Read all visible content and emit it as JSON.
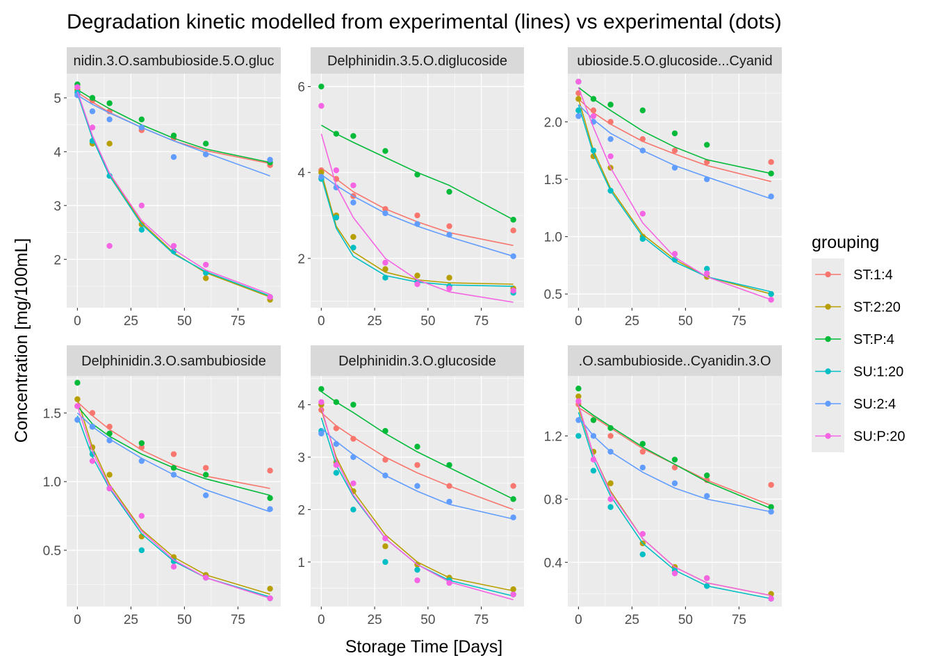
{
  "title": "Degradation kinetic modelled from experimental (lines) vs experimental (dots)",
  "xlabel": "Storage Time [Days]",
  "ylabel": "Concentration [mg/100mL]",
  "legend": {
    "title": "grouping",
    "placement": "right",
    "items": [
      {
        "label": "ST:1:4",
        "color": "#F8766D"
      },
      {
        "label": "ST:2:20",
        "color": "#B79F00"
      },
      {
        "label": "ST:P:4",
        "color": "#00BA38"
      },
      {
        "label": "SU:1:20",
        "color": "#00BFC4"
      },
      {
        "label": "SU:2:4",
        "color": "#619CFF"
      },
      {
        "label": "SU:P:20",
        "color": "#F564E3"
      }
    ]
  },
  "chart_data": [
    {
      "type": "line",
      "facet_title": "nidin.3.O.sambubioside.5.O.gluc",
      "x_ticks": [
        0,
        25,
        50,
        75
      ],
      "y_ticks": [
        "2",
        "3",
        "4",
        "5"
      ],
      "xlim": [
        -5,
        95
      ],
      "ylim": [
        1.1,
        5.45
      ],
      "x": [
        0,
        7,
        15,
        30,
        45,
        60,
        90
      ],
      "series": [
        {
          "name": "ST:1:4",
          "points": [
            5.2,
            4.95,
            4.75,
            4.4,
            4.25,
            3.95,
            3.75
          ],
          "fit": [
            5.1,
            4.92,
            4.73,
            4.45,
            4.2,
            4.02,
            3.78
          ]
        },
        {
          "name": "ST:2:20",
          "points": [
            5.15,
            4.15,
            4.15,
            2.65,
            2.15,
            1.65,
            1.25
          ],
          "fit": [
            5.1,
            4.28,
            3.58,
            2.68,
            2.12,
            1.75,
            1.3
          ]
        },
        {
          "name": "ST:P:4",
          "points": [
            5.25,
            5.0,
            4.9,
            4.6,
            4.3,
            4.15,
            3.8
          ],
          "fit": [
            5.15,
            4.98,
            4.8,
            4.5,
            4.25,
            4.05,
            3.8
          ]
        },
        {
          "name": "SU:1:20",
          "points": [
            5.1,
            4.2,
            3.55,
            2.55,
            2.15,
            1.75,
            1.3
          ],
          "fit": [
            5.08,
            4.25,
            3.55,
            2.65,
            2.1,
            1.77,
            1.32
          ]
        },
        {
          "name": "SU:2:4",
          "points": [
            5.05,
            4.75,
            4.6,
            4.45,
            3.9,
            3.95,
            3.85
          ],
          "fit": [
            5.05,
            4.88,
            4.72,
            4.45,
            4.2,
            3.98,
            3.55
          ]
        },
        {
          "name": "SU:P:20",
          "points": [
            5.2,
            4.45,
            2.25,
            3.0,
            2.25,
            1.9,
            1.3
          ],
          "fit": [
            5.12,
            4.3,
            3.6,
            2.72,
            2.18,
            1.8,
            1.35
          ]
        }
      ]
    },
    {
      "type": "line",
      "facet_title": "Delphinidin.3.5.O.diglucoside",
      "x_ticks": [
        0,
        25,
        50,
        75
      ],
      "y_ticks": [
        "2",
        "4",
        "6"
      ],
      "xlim": [
        -5,
        95
      ],
      "ylim": [
        0.85,
        6.3
      ],
      "x": [
        0,
        7,
        15,
        30,
        45,
        60,
        90
      ],
      "series": [
        {
          "name": "ST:1:4",
          "points": [
            4.05,
            3.85,
            3.45,
            3.15,
            3.0,
            2.75,
            2.65
          ],
          "fit": [
            4.1,
            3.85,
            3.55,
            3.15,
            2.85,
            2.6,
            2.3
          ]
        },
        {
          "name": "ST:2:20",
          "points": [
            4.0,
            3.0,
            2.5,
            1.75,
            1.6,
            1.55,
            1.3
          ],
          "fit": [
            4.0,
            2.75,
            2.15,
            1.68,
            1.5,
            1.43,
            1.4
          ]
        },
        {
          "name": "ST:P:4",
          "points": [
            6.0,
            4.9,
            4.85,
            4.5,
            3.95,
            3.55,
            2.9
          ],
          "fit": [
            5.1,
            4.9,
            4.7,
            4.35,
            4.0,
            3.7,
            2.9
          ]
        },
        {
          "name": "SU:1:20",
          "points": [
            3.85,
            2.95,
            2.25,
            1.55,
            1.45,
            1.35,
            1.2
          ],
          "fit": [
            3.9,
            2.7,
            2.05,
            1.6,
            1.45,
            1.38,
            1.35
          ]
        },
        {
          "name": "SU:2:4",
          "points": [
            3.9,
            3.65,
            3.3,
            3.05,
            2.8,
            2.55,
            2.05
          ],
          "fit": [
            3.95,
            3.7,
            3.45,
            3.05,
            2.75,
            2.5,
            2.05
          ]
        },
        {
          "name": "SU:P:20",
          "points": [
            5.55,
            4.05,
            3.7,
            1.9,
            1.4,
            1.3,
            1.25
          ],
          "fit": [
            4.9,
            3.7,
            2.95,
            2.0,
            1.5,
            1.22,
            0.98
          ]
        }
      ]
    },
    {
      "type": "line",
      "facet_title": "ubioside.5.O.glucoside...Cyanid",
      "x_ticks": [
        0,
        25,
        50,
        75
      ],
      "y_ticks": [
        "0.5",
        "1.0",
        "1.5",
        "2.0"
      ],
      "xlim": [
        -5,
        95
      ],
      "ylim": [
        0.38,
        2.42
      ],
      "x": [
        0,
        7,
        15,
        30,
        45,
        60,
        90
      ],
      "series": [
        {
          "name": "ST:1:4",
          "points": [
            2.25,
            2.1,
            2.0,
            1.85,
            1.75,
            1.65,
            1.65
          ],
          "fit": [
            2.2,
            2.08,
            1.98,
            1.83,
            1.72,
            1.62,
            1.48
          ]
        },
        {
          "name": "ST:2:20",
          "points": [
            2.2,
            1.7,
            1.6,
            1.0,
            0.8,
            0.65,
            0.5
          ],
          "fit": [
            2.2,
            1.75,
            1.42,
            1.02,
            0.8,
            0.65,
            0.5
          ]
        },
        {
          "name": "ST:P:4",
          "points": [
            2.35,
            2.2,
            2.15,
            2.1,
            1.9,
            1.8,
            1.55
          ],
          "fit": [
            2.3,
            2.2,
            2.1,
            1.92,
            1.78,
            1.67,
            1.55
          ]
        },
        {
          "name": "SU:1:20",
          "points": [
            2.1,
            1.75,
            1.4,
            0.98,
            0.8,
            0.72,
            0.5
          ],
          "fit": [
            2.15,
            1.72,
            1.4,
            1.0,
            0.78,
            0.65,
            0.52
          ]
        },
        {
          "name": "SU:2:4",
          "points": [
            2.05,
            2.0,
            1.85,
            1.75,
            1.6,
            1.5,
            1.35
          ],
          "fit": [
            2.15,
            2.02,
            1.9,
            1.75,
            1.62,
            1.52,
            1.33
          ]
        },
        {
          "name": "SU:P:20",
          "points": [
            2.35,
            2.05,
            1.7,
            1.2,
            0.85,
            0.68,
            0.45
          ],
          "fit": [
            2.3,
            1.95,
            1.6,
            1.12,
            0.82,
            0.65,
            0.45
          ]
        }
      ]
    },
    {
      "type": "line",
      "facet_title": "Delphinidin.3.O.sambubioside",
      "x_ticks": [
        0,
        25,
        50,
        75
      ],
      "y_ticks": [
        "0.5",
        "1.0",
        "1.5"
      ],
      "xlim": [
        -5,
        95
      ],
      "ylim": [
        0.09,
        1.77
      ],
      "x": [
        0,
        7,
        15,
        30,
        45,
        60,
        90
      ],
      "series": [
        {
          "name": "ST:1:4",
          "points": [
            1.55,
            1.5,
            1.4,
            1.25,
            1.2,
            1.1,
            1.08
          ],
          "fit": [
            1.58,
            1.48,
            1.38,
            1.23,
            1.12,
            1.04,
            0.95
          ]
        },
        {
          "name": "ST:2:20",
          "points": [
            1.6,
            1.25,
            1.05,
            0.6,
            0.45,
            0.32,
            0.22
          ],
          "fit": [
            1.6,
            1.25,
            0.98,
            0.65,
            0.45,
            0.32,
            0.18
          ]
        },
        {
          "name": "ST:P:4",
          "points": [
            1.72,
            1.4,
            1.35,
            1.28,
            1.1,
            1.05,
            0.88
          ],
          "fit": [
            1.55,
            1.42,
            1.33,
            1.2,
            1.1,
            1.02,
            0.9
          ]
        },
        {
          "name": "SU:1:20",
          "points": [
            1.45,
            1.2,
            0.95,
            0.5,
            0.42,
            0.3,
            0.15
          ],
          "fit": [
            1.48,
            1.18,
            0.95,
            0.62,
            0.42,
            0.3,
            0.16
          ]
        },
        {
          "name": "SU:2:4",
          "points": [
            1.45,
            1.4,
            1.3,
            1.15,
            1.05,
            0.9,
            0.8
          ],
          "fit": [
            1.5,
            1.4,
            1.31,
            1.17,
            1.05,
            0.94,
            0.78
          ]
        },
        {
          "name": "SU:P:20",
          "points": [
            1.55,
            1.15,
            0.95,
            0.75,
            0.38,
            0.3,
            0.15
          ],
          "fit": [
            1.55,
            1.22,
            0.96,
            0.64,
            0.43,
            0.3,
            0.15
          ]
        }
      ]
    },
    {
      "type": "line",
      "facet_title": "Delphinidin.3.O.glucoside",
      "x_ticks": [
        0,
        25,
        50,
        75
      ],
      "y_ticks": [
        "1",
        "2",
        "3",
        "4"
      ],
      "xlim": [
        -5,
        95
      ],
      "ylim": [
        0.15,
        4.55
      ],
      "x": [
        0,
        7,
        15,
        30,
        45,
        60,
        90
      ],
      "series": [
        {
          "name": "ST:1:4",
          "points": [
            3.9,
            3.55,
            3.35,
            2.95,
            2.85,
            2.45,
            2.45
          ],
          "fit": [
            3.85,
            3.6,
            3.38,
            3.0,
            2.7,
            2.45,
            2.0
          ]
        },
        {
          "name": "ST:2:20",
          "points": [
            4.0,
            2.9,
            2.35,
            1.3,
            0.95,
            0.7,
            0.48
          ],
          "fit": [
            3.9,
            3.0,
            2.35,
            1.52,
            1.0,
            0.7,
            0.45
          ]
        },
        {
          "name": "ST:P:4",
          "points": [
            4.3,
            4.05,
            4.0,
            3.5,
            3.2,
            2.85,
            2.2
          ],
          "fit": [
            4.25,
            4.05,
            3.85,
            3.45,
            3.1,
            2.8,
            2.2
          ]
        },
        {
          "name": "SU:1:20",
          "points": [
            3.5,
            2.7,
            2.0,
            1.0,
            0.85,
            0.65,
            0.38
          ],
          "fit": [
            3.75,
            2.85,
            2.25,
            1.45,
            0.95,
            0.65,
            0.35
          ]
        },
        {
          "name": "SU:2:4",
          "points": [
            3.45,
            3.25,
            3.0,
            2.65,
            2.45,
            2.15,
            1.85
          ],
          "fit": [
            3.55,
            3.3,
            3.05,
            2.65,
            2.35,
            2.1,
            1.82
          ]
        },
        {
          "name": "SU:P:20",
          "points": [
            4.05,
            2.85,
            2.5,
            1.45,
            0.65,
            0.6,
            0.38
          ],
          "fit": [
            3.95,
            2.95,
            2.28,
            1.45,
            0.95,
            0.62,
            0.28
          ]
        }
      ]
    },
    {
      "type": "line",
      "facet_title": ".O.sambubioside..Cyanidin.3.O",
      "x_ticks": [
        0,
        25,
        50,
        75
      ],
      "y_ticks": [
        "0.4",
        "0.8",
        "1.2"
      ],
      "xlim": [
        -5,
        95
      ],
      "ylim": [
        0.12,
        1.58
      ],
      "x": [
        0,
        7,
        15,
        30,
        45,
        60,
        90
      ],
      "series": [
        {
          "name": "ST:1:4",
          "points": [
            1.4,
            1.3,
            1.2,
            1.1,
            1.0,
            0.92,
            0.89
          ],
          "fit": [
            1.38,
            1.32,
            1.25,
            1.12,
            1.02,
            0.92,
            0.76
          ]
        },
        {
          "name": "ST:2:20",
          "points": [
            1.45,
            1.1,
            0.9,
            0.52,
            0.37,
            0.3,
            0.2
          ],
          "fit": [
            1.38,
            1.08,
            0.85,
            0.55,
            0.37,
            0.27,
            0.19
          ]
        },
        {
          "name": "ST:P:4",
          "points": [
            1.5,
            1.3,
            1.25,
            1.15,
            1.05,
            0.95,
            0.75
          ],
          "fit": [
            1.4,
            1.33,
            1.26,
            1.13,
            1.02,
            0.91,
            0.74
          ]
        },
        {
          "name": "SU:1:20",
          "points": [
            1.2,
            0.98,
            0.75,
            0.45,
            0.35,
            0.25,
            0.17
          ],
          "fit": [
            1.35,
            1.05,
            0.82,
            0.52,
            0.35,
            0.25,
            0.17
          ]
        },
        {
          "name": "SU:2:4",
          "points": [
            1.3,
            1.2,
            1.1,
            1.0,
            0.9,
            0.82,
            0.72
          ],
          "fit": [
            1.32,
            1.2,
            1.1,
            0.97,
            0.87,
            0.8,
            0.72
          ]
        },
        {
          "name": "SU:P:20",
          "points": [
            1.42,
            1.05,
            0.8,
            0.58,
            0.33,
            0.3,
            0.17
          ],
          "fit": [
            1.4,
            1.08,
            0.84,
            0.55,
            0.37,
            0.27,
            0.19
          ]
        }
      ]
    }
  ]
}
